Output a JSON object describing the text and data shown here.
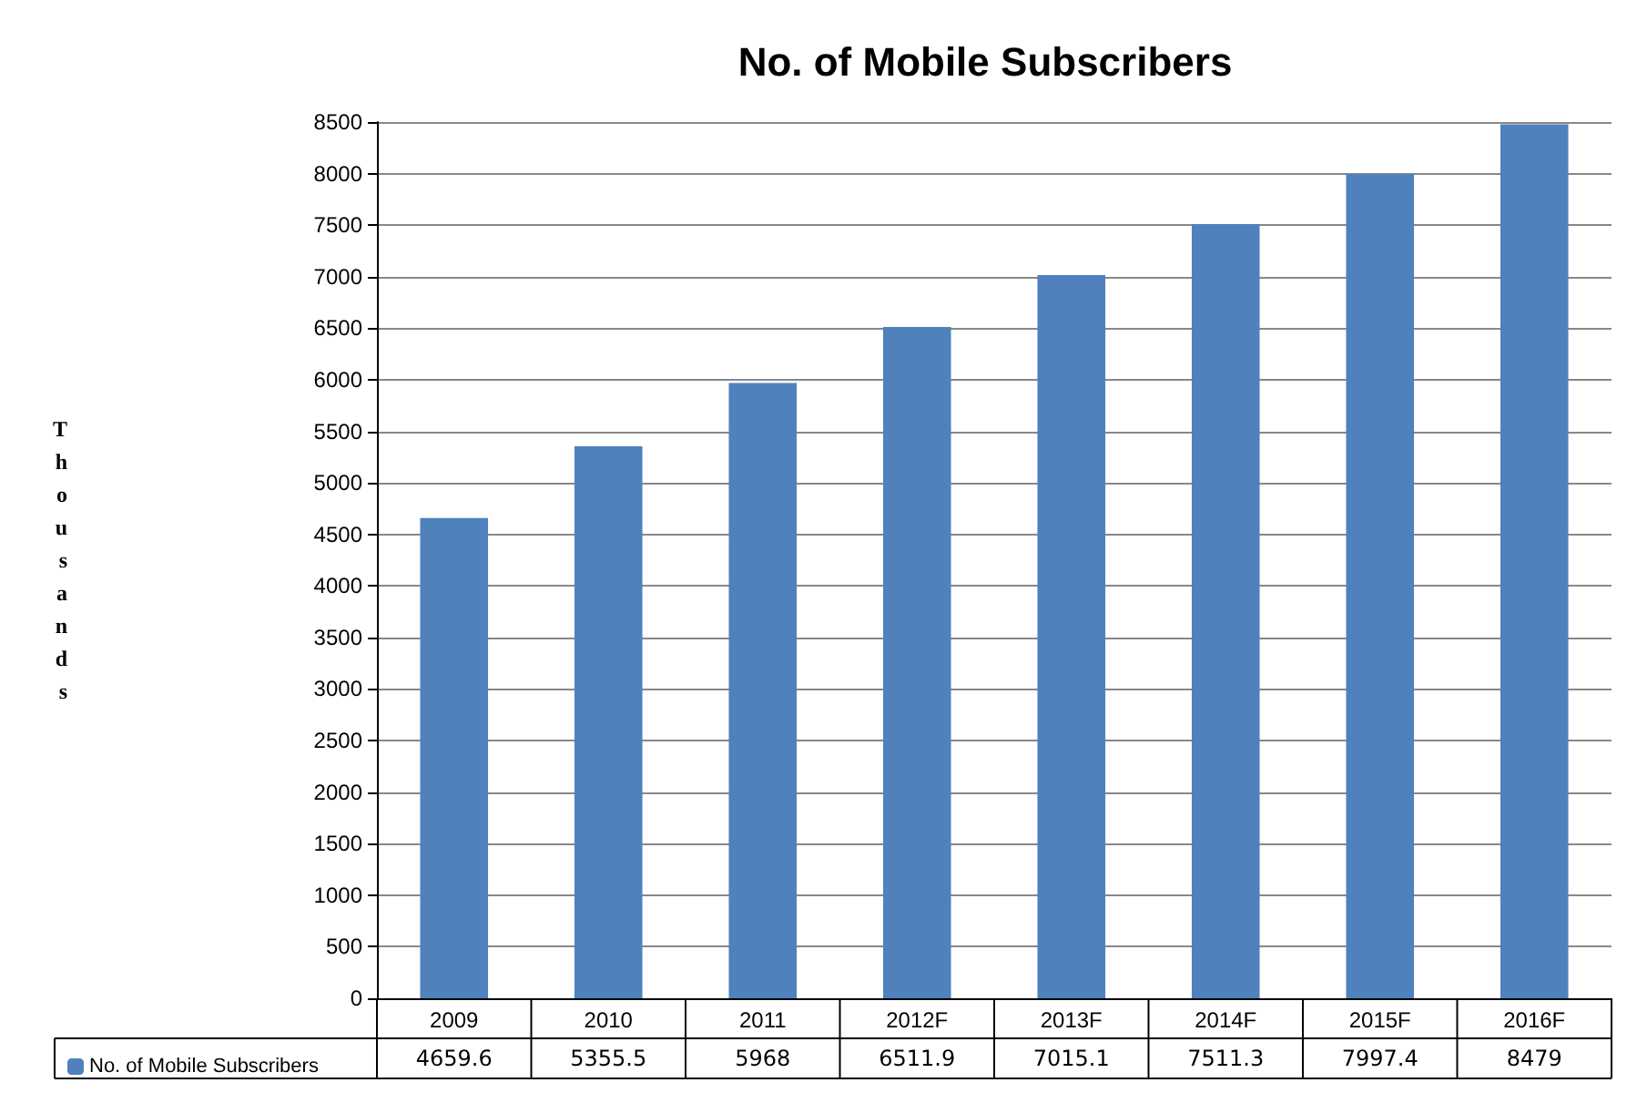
{
  "chart_data": {
    "type": "bar",
    "title": "No. of Mobile Subscribers",
    "ylabel": "Thousands",
    "categories": [
      "2009",
      "2010",
      "2011",
      "2012F",
      "2013F",
      "2014F",
      "2015F",
      "2016F"
    ],
    "series": [
      {
        "name": "No. of Mobile Subscribers",
        "color": "#4f81bd",
        "values": [
          4659.6,
          5355.5,
          5968,
          6511.9,
          7015.1,
          7511.3,
          7997.4,
          8479
        ]
      }
    ],
    "ylim": [
      0,
      8500
    ],
    "yticks": [
      0,
      500,
      1000,
      1500,
      2000,
      2500,
      3000,
      3500,
      4000,
      4500,
      5000,
      5500,
      6000,
      6500,
      7000,
      7500,
      8000,
      8500
    ],
    "grid": "y",
    "legend": "bottom left",
    "data_labels": true
  }
}
